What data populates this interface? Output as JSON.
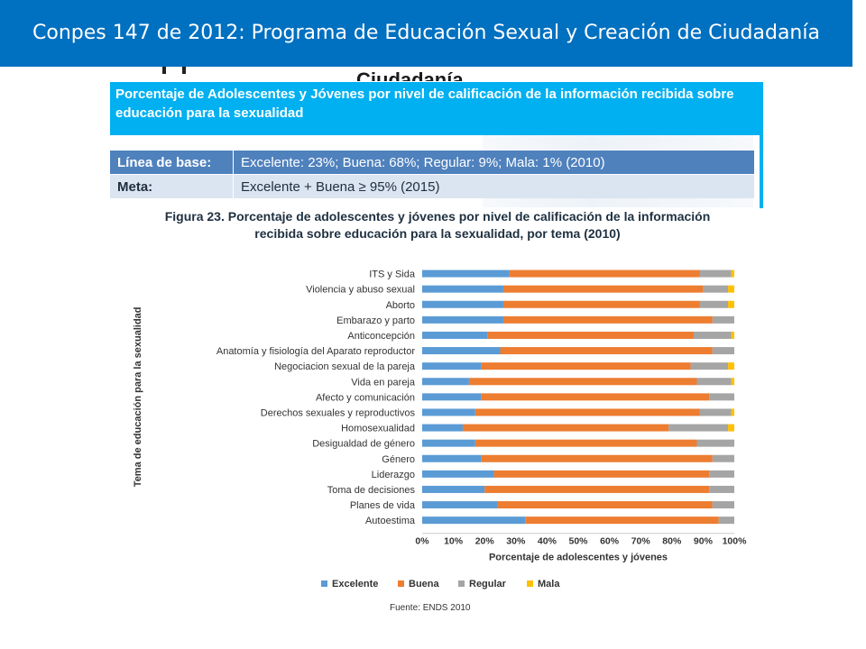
{
  "slide": {
    "title": "Conpes 147 de 2012: Programa de Educación Sexual y Creación de Ciudadanía",
    "ghost_title": "Ciudadanía"
  },
  "indicator": {
    "title": "Porcentaje de Adolescentes y Jóvenes por nivel de calificación de la información recibida sobre educación para la sexualidad",
    "baseline_label": "Línea de base:",
    "baseline_value": "Excelente: 23%; Buena: 68%; Regular: 9%; Mala: 1% (2010)",
    "goal_label": "Meta:",
    "goal_value": "Excelente + Buena ≥ 95% (2015)"
  },
  "figure": {
    "caption_line1": "Figura 23. Porcentaje de adolescentes y jóvenes por nivel de calificación de la información",
    "caption_line2": "recibida sobre educación para la sexualidad, por tema (2010)",
    "source": "Fuente: ENDS 2010"
  },
  "chart_data": {
    "type": "bar",
    "orientation": "horizontal",
    "stacked": true,
    "categories": [
      "ITS y Sida",
      "Violencia y abuso sexual",
      "Aborto",
      "Embarazo y parto",
      "Anticoncepción",
      "Anatomía y fisiología del Aparato reproductor",
      "Negociacion sexual de la pareja",
      "Vida en pareja",
      "Afecto y comunicación",
      "Derechos sexuales y reproductivos",
      "Homosexualidad",
      "Desigualdad de género",
      "Género",
      "Liderazgo",
      "Toma de decisiones",
      "Planes de vida",
      "Autoestima"
    ],
    "series": [
      {
        "name": "Excelente",
        "color": "#5b9bd5",
        "values": [
          28,
          26,
          26,
          26,
          21,
          25,
          19,
          15,
          19,
          17,
          13,
          17,
          19,
          23,
          20,
          24,
          33
        ]
      },
      {
        "name": "Buena",
        "color": "#ed7d31",
        "values": [
          61,
          64,
          63,
          67,
          66,
          68,
          67,
          73,
          73,
          72,
          66,
          71,
          74,
          69,
          72,
          69,
          62
        ]
      },
      {
        "name": "Regular",
        "color": "#a5a5a5",
        "values": [
          10,
          8,
          9,
          7,
          12,
          7,
          12,
          11,
          8,
          10,
          19,
          12,
          7,
          8,
          8,
          7,
          5
        ]
      },
      {
        "name": "Mala",
        "color": "#ffc000",
        "values": [
          1,
          2,
          2,
          0,
          1,
          0,
          2,
          1,
          0,
          1,
          2,
          0,
          0,
          0,
          0,
          0,
          0
        ]
      }
    ],
    "xlabel": "Porcentaje de adolescentes y jóvenes",
    "ylabel": "Tema de educación para la sexualidad",
    "xlim": [
      0,
      100
    ],
    "xticks": [
      "0%",
      "10%",
      "20%",
      "30%",
      "40%",
      "50%",
      "60%",
      "70%",
      "80%",
      "90%",
      "100%"
    ],
    "grid": false,
    "legend_position": "bottom"
  }
}
